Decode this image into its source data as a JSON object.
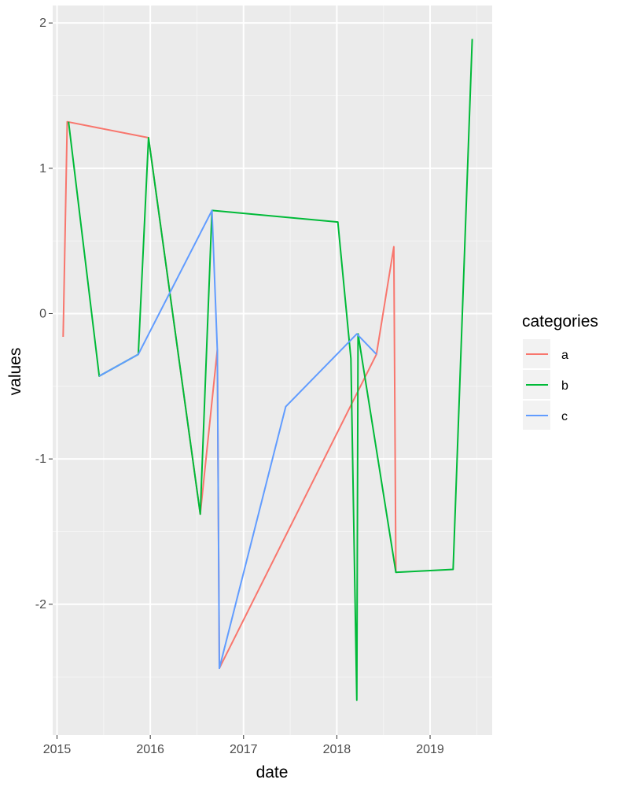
{
  "chart_data": {
    "type": "line",
    "title": "",
    "xlabel": "date",
    "ylabel": "values",
    "x_ticks": [
      "2015",
      "2016",
      "2017",
      "2018",
      "2019"
    ],
    "y_ticks": [
      "-2",
      "-1",
      "0",
      "1",
      "2"
    ],
    "xlim": [
      "2014-12-15",
      "2019-09-01"
    ],
    "ylim": [
      -2.9,
      2.12
    ],
    "grid": true,
    "legend": {
      "title": "categories",
      "position": "right"
    },
    "series": [
      {
        "name": "a",
        "color": "#F8766D",
        "points": [
          {
            "x": "2015-01-25",
            "y": -0.16
          },
          {
            "x": "2015-02-10",
            "y": 1.32
          },
          {
            "x": "2015-12-25",
            "y": 1.21
          },
          {
            "x": "2016-07-15",
            "y": -1.38
          },
          {
            "x": "2016-09-20",
            "y": -0.25
          },
          {
            "x": "2016-09-28",
            "y": -2.44
          },
          {
            "x": "2018-06-05",
            "y": -0.28
          },
          {
            "x": "2018-08-12",
            "y": 0.46
          },
          {
            "x": "2018-08-20",
            "y": -1.78
          }
        ]
      },
      {
        "name": "b",
        "color": "#00BA38",
        "points": [
          {
            "x": "2015-02-15",
            "y": 1.32
          },
          {
            "x": "2015-06-15",
            "y": -0.43
          },
          {
            "x": "2015-11-15",
            "y": -0.28
          },
          {
            "x": "2015-12-25",
            "y": 1.21
          },
          {
            "x": "2016-07-15",
            "y": -1.38
          },
          {
            "x": "2016-08-30",
            "y": 0.71
          },
          {
            "x": "2018-01-05",
            "y": 0.63
          },
          {
            "x": "2018-02-25",
            "y": -0.31
          },
          {
            "x": "2018-03-20",
            "y": -2.66
          },
          {
            "x": "2018-03-25",
            "y": -0.14
          },
          {
            "x": "2018-08-20",
            "y": -1.78
          },
          {
            "x": "2019-04-01",
            "y": -1.76
          },
          {
            "x": "2019-06-15",
            "y": 1.89
          }
        ]
      },
      {
        "name": "c",
        "color": "#619CFF",
        "points": [
          {
            "x": "2015-06-15",
            "y": -0.43
          },
          {
            "x": "2015-11-15",
            "y": -0.28
          },
          {
            "x": "2016-08-30",
            "y": 0.71
          },
          {
            "x": "2016-09-20",
            "y": -0.25
          },
          {
            "x": "2016-09-28",
            "y": -2.44
          },
          {
            "x": "2017-06-15",
            "y": -0.64
          },
          {
            "x": "2018-03-20",
            "y": -0.14
          },
          {
            "x": "2018-06-05",
            "y": -0.28
          }
        ]
      }
    ]
  }
}
